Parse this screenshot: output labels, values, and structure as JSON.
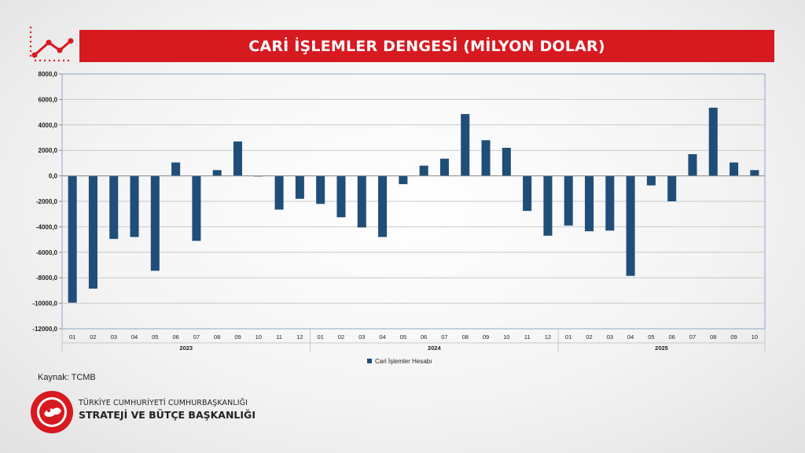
{
  "header": {
    "title": "CARİ İŞLEMLER DENGESİ (MİLYON DOLAR)"
  },
  "icons": {
    "header_icon": "line-chart-icon",
    "org_logo": "seal-logo-icon"
  },
  "colors": {
    "title_bar": "#d71920",
    "bar": "#1f4e79",
    "grid": "#c8c8c8",
    "axis": "#8fa8c8"
  },
  "chart_data": {
    "type": "bar",
    "title": "CARİ İŞLEMLER DENGESİ (MİLYON DOLAR)",
    "xlabel": "",
    "ylabel": "",
    "ylim": [
      -12000,
      8000
    ],
    "yticks": [
      "8000,0",
      "6000,0",
      "4000,0",
      "2000,0",
      "0,0",
      "-2000,0",
      "-4000,0",
      "-6000,0",
      "-8000,0",
      "-10000,0",
      "-12000,0"
    ],
    "grid": true,
    "legend_position": "bottom",
    "year_groups": [
      {
        "year": "2023",
        "months": [
          "01",
          "02",
          "03",
          "04",
          "05",
          "06",
          "07",
          "08",
          "09",
          "10",
          "11",
          "12"
        ]
      },
      {
        "year": "2024",
        "months": [
          "01",
          "02",
          "03",
          "04",
          "05",
          "06",
          "07",
          "08",
          "09",
          "10",
          "11",
          "12"
        ]
      },
      {
        "year": "2025",
        "months": [
          "01",
          "02",
          "03",
          "04",
          "05",
          "06",
          "07",
          "08",
          "09",
          "10"
        ]
      }
    ],
    "series": [
      {
        "name": "Cari İşlemler Hesabı",
        "values": [
          -9950,
          -8850,
          -4950,
          -4800,
          -7450,
          1050,
          -5100,
          450,
          2700,
          -50,
          -2650,
          -1800,
          -2200,
          -3250,
          -4050,
          -4800,
          -650,
          800,
          1350,
          4850,
          2800,
          2200,
          -2750,
          -4700,
          -3900,
          -4350,
          -4300,
          -7850,
          -750,
          -2000,
          1700,
          5350,
          1050,
          450
        ]
      }
    ]
  },
  "footer": {
    "source": "Kaynak: TCMB",
    "org_line1": "TÜRKİYE CUMHURİYETİ CUMHURBAŞKANLIĞI",
    "org_line2": "STRATEJİ VE BÜTÇE BAŞKANLIĞI"
  }
}
